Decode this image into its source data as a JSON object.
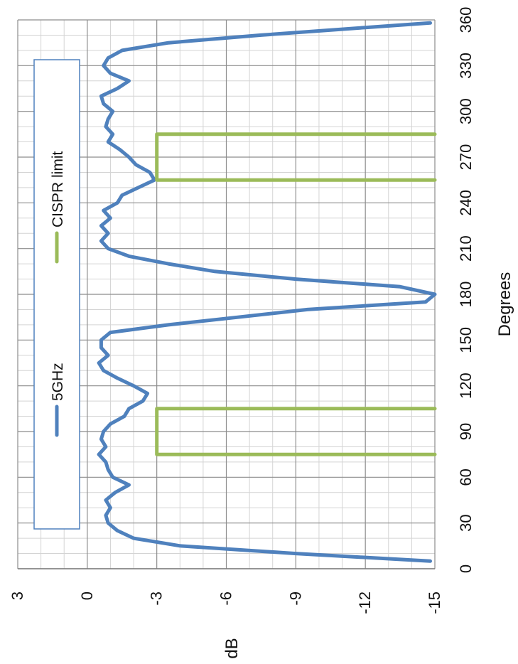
{
  "chart_data": {
    "type": "line",
    "orientation": "rotated-90-clockwise",
    "xlabel": "Degrees",
    "ylabel": "dB",
    "xlim": [
      0,
      360
    ],
    "ylim": [
      -15,
      3
    ],
    "xticks": [
      "0",
      "30",
      "60",
      "90",
      "120",
      "150",
      "180",
      "210",
      "240",
      "270",
      "300",
      "330",
      "360"
    ],
    "yticks": [
      "3",
      "0",
      "-3",
      "-6",
      "-9",
      "-12",
      "-15"
    ],
    "grid": true,
    "legend_position": "left",
    "legend": [
      "5GHz",
      "CISPR limit"
    ],
    "colors": {
      "5GHz": "#4f81bd",
      "CISPR limit": "#9bbb59"
    },
    "series": [
      {
        "name": "5GHz",
        "x": [
          5,
          10,
          15,
          20,
          25,
          30,
          35,
          40,
          45,
          50,
          55,
          60,
          65,
          70,
          75,
          80,
          85,
          90,
          95,
          100,
          105,
          110,
          115,
          120,
          125,
          130,
          135,
          140,
          145,
          150,
          155,
          160,
          165,
          170,
          175,
          180,
          185,
          190,
          195,
          200,
          205,
          210,
          215,
          220,
          225,
          230,
          235,
          240,
          245,
          250,
          255,
          260,
          265,
          270,
          275,
          280,
          285,
          290,
          295,
          300,
          305,
          310,
          315,
          320,
          325,
          330,
          335,
          340,
          345,
          350,
          355,
          358
        ],
        "values": [
          -14.8,
          -9.0,
          -4.0,
          -2.0,
          -1.3,
          -0.9,
          -0.8,
          -1.0,
          -0.8,
          -1.2,
          -1.8,
          -1.1,
          -0.9,
          -0.8,
          -0.5,
          -0.8,
          -0.6,
          -0.7,
          -1.0,
          -1.6,
          -1.8,
          -2.4,
          -2.6,
          -2.0,
          -1.3,
          -0.7,
          -0.5,
          -0.9,
          -0.6,
          -0.6,
          -1.0,
          -3.5,
          -6.5,
          -9.5,
          -14.6,
          -15.0,
          -13.5,
          -9.0,
          -5.5,
          -3.5,
          -1.8,
          -0.9,
          -0.6,
          -0.9,
          -0.6,
          -1.0,
          -0.7,
          -1.3,
          -1.5,
          -2.2,
          -2.9,
          -2.7,
          -2.1,
          -1.8,
          -1.4,
          -0.9,
          -1.1,
          -0.8,
          -0.9,
          -1.1,
          -0.7,
          -0.6,
          -1.3,
          -1.8,
          -1.0,
          -0.7,
          -0.9,
          -1.5,
          -3.5,
          -7.5,
          -12.0,
          -14.8
        ]
      },
      {
        "name": "CISPR limit",
        "x": [
          75,
          75,
          105,
          105,
          null,
          255,
          255,
          285,
          285
        ],
        "values": [
          -15,
          -3,
          -3,
          -15,
          null,
          -15,
          -3,
          -3,
          -15
        ]
      }
    ]
  }
}
